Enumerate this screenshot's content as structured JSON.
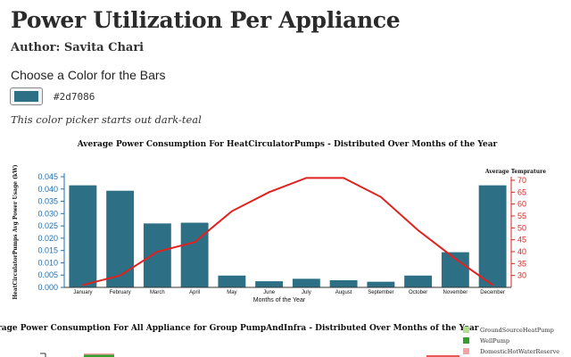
{
  "page": {
    "title": "Power Utilization Per Appliance",
    "author": "Author: Savita Chari",
    "picker_heading": "Choose a Color for the Bars",
    "picker_value": "#2d7086",
    "picker_note": "This color picker starts out dark-teal"
  },
  "colors": {
    "bar": "#2d7086",
    "line": "#e0221f",
    "left_axis": "#1f6fb2"
  },
  "chart_data": [
    {
      "type": "bar",
      "title": "Average Power Consumption For HeatCirculatorPumps - Distributed Over Months of the Year",
      "xlabel": "Months of the Year",
      "ylabel": "HeatCirculatorPumps Avg Power Usage (kW)",
      "categories": [
        "January",
        "February",
        "March",
        "April",
        "May",
        "June",
        "July",
        "August",
        "September",
        "October",
        "November",
        "December"
      ],
      "values": [
        0.0415,
        0.0393,
        0.026,
        0.0263,
        0.0048,
        0.0025,
        0.0035,
        0.0029,
        0.0023,
        0.0048,
        0.0143,
        0.0415
      ],
      "yticks": [
        "0.000",
        "0.005",
        "0.010",
        "0.015",
        "0.020",
        "0.025",
        "0.030",
        "0.035",
        "0.040",
        "0.045"
      ],
      "ylim": [
        0,
        0.045
      ],
      "line_series": {
        "name": "Average Temprature",
        "values": [
          26,
          30,
          40,
          44,
          57,
          65,
          71,
          71,
          63,
          49,
          37,
          26
        ],
        "ylim": [
          25,
          70
        ],
        "yticks": [
          "30",
          "35",
          "40",
          "45",
          "50",
          "55",
          "60",
          "65",
          "70"
        ]
      }
    },
    {
      "type": "bar",
      "title": "Average Power Consumption For All Appliance for Group PumpAndInfra - Distributed Over Months of the Year",
      "legend": [
        {
          "name": "GroundSourceHeatPump",
          "color": "#b3de8a"
        },
        {
          "name": "WellPump",
          "color": "#33a02c"
        },
        {
          "name": "DomesticHotWaterReserve",
          "color": "#f4a3a3"
        }
      ]
    }
  ]
}
